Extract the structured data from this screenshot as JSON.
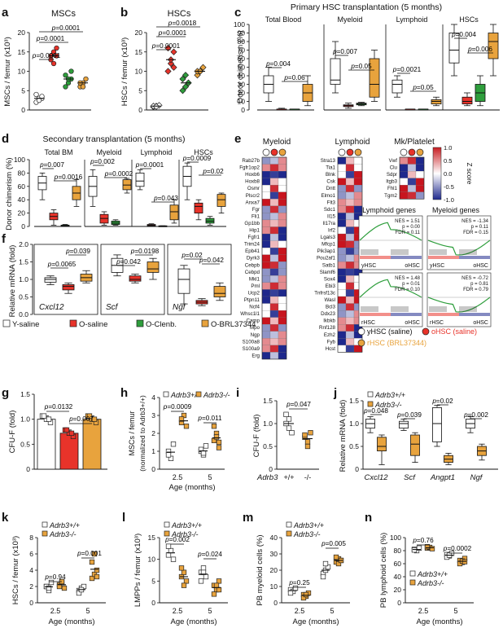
{
  "chart_data": [
    {
      "panel": "a",
      "type": "scatter",
      "title": "MSCs",
      "ylabel": "MSCs / femur (x10³)",
      "ylim": [
        0,
        20
      ],
      "yticks": [
        0,
        5,
        10,
        15,
        20
      ],
      "groups": [
        {
          "name": "Y-saline",
          "color": "#ffffff",
          "mean": 3,
          "values": [
            2,
            3,
            3,
            4,
            2.5,
            3.5
          ]
        },
        {
          "name": "O-saline",
          "color": "#e8332a",
          "mean": 14,
          "values": [
            13,
            15,
            16,
            14,
            12,
            14
          ]
        },
        {
          "name": "O-Clenb.",
          "color": "#2e9e3c",
          "mean": 8,
          "values": [
            6,
            7,
            8,
            9,
            8,
            10
          ]
        },
        {
          "name": "O-BRL37344",
          "color": "#e8a33d",
          "mean": 7,
          "values": [
            6,
            7,
            8,
            7,
            6
          ]
        }
      ],
      "pvalues": [
        {
          "label": "p=0.0001",
          "from": 0,
          "to": 1
        },
        {
          "label": "p=0.0001",
          "from": 0,
          "to": 2
        },
        {
          "label": "p=0.0001",
          "from": 0,
          "to": 3
        }
      ]
    },
    {
      "panel": "b",
      "type": "scatter",
      "title": "HSCs",
      "ylabel": "HSCs / femur (x10³)",
      "ylim": [
        0,
        20
      ],
      "yticks": [
        0,
        5,
        10,
        15,
        20
      ],
      "groups": [
        {
          "name": "Y-saline",
          "mean": 1,
          "values": [
            0.8,
            1,
            1.2,
            1,
            0.9
          ]
        },
        {
          "name": "O-saline",
          "mean": 13,
          "values": [
            10,
            12,
            15,
            16,
            13,
            11
          ]
        },
        {
          "name": "O-Clenb.",
          "mean": 7,
          "values": [
            5,
            6,
            7,
            8,
            9,
            7
          ]
        },
        {
          "name": "O-BRL37344",
          "mean": 10,
          "values": [
            9,
            10,
            11,
            10,
            10
          ]
        }
      ],
      "pvalues": [
        {
          "label": "p=0.0001",
          "from": 0,
          "to": 1
        },
        {
          "label": "p=0.0001",
          "from": 0,
          "to": 2
        },
        {
          "label": "p=0.0018",
          "from": 0,
          "to": 3
        }
      ]
    },
    {
      "panel": "c",
      "type": "box",
      "title": "Primary HSC transplantation (5 months)",
      "ylabel": "Donor chimerism (%)",
      "ylim": [
        0,
        100
      ],
      "yticks": [
        0,
        10,
        20,
        30,
        40,
        50,
        60,
        70,
        80,
        90,
        100
      ],
      "subplots": [
        {
          "title": "Total Blood",
          "boxes": [
            {
              "min": 10,
              "q1": 20,
              "med": 30,
              "q3": 40,
              "max": 50
            },
            {
              "min": 1,
              "q1": 1,
              "med": 1,
              "q3": 1,
              "max": 2
            },
            {
              "min": 1,
              "q1": 1,
              "med": 1,
              "q3": 1,
              "max": 1
            },
            {
              "min": 5,
              "q1": 10,
              "med": 20,
              "q3": 30,
              "max": 40
            }
          ],
          "pvalues": [
            "p=0.004",
            "p=0.06"
          ]
        },
        {
          "title": "Myeloid",
          "boxes": [
            {
              "min": 20,
              "q1": 30,
              "med": 35,
              "q3": 60,
              "max": 80
            },
            {
              "min": 2,
              "q1": 4,
              "med": 5,
              "q3": 6,
              "max": 8
            },
            {
              "min": 5,
              "q1": 6,
              "med": 7,
              "q3": 8,
              "max": 9
            },
            {
              "min": 10,
              "q1": 15,
              "med": 30,
              "q3": 60,
              "max": 70
            }
          ],
          "pvalues": [
            "p=0.007",
            "p=0.05"
          ]
        },
        {
          "title": "Lymphoid",
          "boxes": [
            {
              "min": 15,
              "q1": 20,
              "med": 30,
              "q3": 35,
              "max": 40
            },
            {
              "min": 1,
              "q1": 1,
              "med": 1,
              "q3": 1,
              "max": 1
            },
            {
              "min": 1,
              "q1": 1,
              "med": 1,
              "q3": 1,
              "max": 1
            },
            {
              "min": 5,
              "q1": 7,
              "med": 10,
              "q3": 12,
              "max": 15
            }
          ],
          "pvalues": [
            "p=0.0021",
            "p=0.05"
          ]
        },
        {
          "title": "HSCs",
          "boxes": [
            {
              "min": 40,
              "q1": 55,
              "med": 70,
              "q3": 90,
              "max": 100
            },
            {
              "min": 5,
              "q1": 7,
              "med": 10,
              "q3": 15,
              "max": 20
            },
            {
              "min": 5,
              "q1": 10,
              "med": 20,
              "q3": 30,
              "max": 40
            },
            {
              "min": 40,
              "q1": 60,
              "med": 80,
              "q3": 90,
              "max": 100
            }
          ],
          "pvalues": [
            "p=0.004",
            "p=0.006"
          ]
        }
      ]
    },
    {
      "panel": "d",
      "type": "box",
      "title": "Secondary transplantation (5 months)",
      "ylabel": "Donor chimerism (%)",
      "ylim": [
        0,
        100
      ],
      "yticks": [
        0,
        20,
        40,
        60,
        80,
        100
      ],
      "subplots": [
        {
          "title": "Total BM",
          "pvalues": [
            "p=0.007",
            "p=0.0016"
          ]
        },
        {
          "title": "Myeloid",
          "pvalues": [
            "p=0.002",
            "p=0.0002"
          ]
        },
        {
          "title": "Lymphoid",
          "pvalues": [
            "p=0.0001",
            "p=0.043"
          ]
        },
        {
          "title": "HSCs",
          "pvalues": [
            "p=0.0009",
            "p=0.02"
          ]
        }
      ]
    },
    {
      "panel": "e",
      "type": "heatmap",
      "titles": [
        "Myeloid",
        "Lymphoid",
        "Mk/Platelet"
      ],
      "legend_title": "Z score",
      "scale": [
        1.0,
        0.5,
        0,
        -0.5,
        -1.0
      ],
      "myeloid_genes": [
        "Rab27b",
        "Fgfr1op2",
        "Hoxb6",
        "Hoxb8",
        "Osmr",
        "Plscr2",
        "Anxa7",
        "Fgr",
        "Fli1",
        "Gp1bb",
        "Hip1",
        "Fgfr1",
        "Trim24",
        "Epb41",
        "Dyrk3",
        "Cebpb",
        "Cebpd",
        "Mkl1",
        "Pml",
        "Ucp2",
        "Ptpn11",
        "Ncf4",
        "Whsc1l1",
        "Camp",
        "Mpo",
        "Ngp",
        "S100a8",
        "S100a9",
        "Erg"
      ],
      "lymphoid_genes": [
        "Stra13",
        "Tia1",
        "Blnk",
        "Csk",
        "Dntt",
        "Elmo1",
        "Flt3",
        "Sdc1",
        "Il15",
        "Il17ra",
        "Irf2",
        "Lgals3",
        "Mfcp1",
        "Pik3ap1",
        "Pou2af1",
        "Satb1",
        "Slamf6",
        "Sox4",
        "Ebi3",
        "Tnfrsf13c",
        "Wasl",
        "Bcl3",
        "Ddx23",
        "Ikbkb",
        "Rnf128",
        "Ezh2",
        "Fyb",
        "Hcst"
      ],
      "mk_genes": [
        "Vwf",
        "Clu",
        "Sdpr",
        "Itgb3",
        "Fhl1",
        "Tgm2"
      ],
      "gsea": {
        "titles": [
          "Lymphoid genes",
          "Myeloid genes"
        ],
        "plots": [
          {
            "stats": [
              "NES = 1.51",
              "p = 0.00",
              "FDR = 0.11"
            ],
            "left": "yHSC",
            "right": "oHSC"
          },
          {
            "stats": [
              "NES = -1.34",
              "p = 0.11",
              "FDR = 0.15"
            ],
            "left": "yHSC",
            "right": "oHSC"
          },
          {
            "stats": [
              "NES = 1.48",
              "p = 0.01",
              "FDR = 0.10"
            ],
            "left": "rHSC",
            "right": "oHSC"
          },
          {
            "stats": [
              "NES = -0.72",
              "p = 0.81",
              "FDR = 0.79"
            ],
            "left": "rHSC",
            "right": "oHSC"
          }
        ]
      },
      "legend": [
        {
          "label": "yHSC (saline)",
          "color": "#ffffff"
        },
        {
          "label": "oHSC (saline)",
          "color": "#e8332a"
        },
        {
          "label": "rHSC (BRL37344)",
          "color": "#e8a33d"
        }
      ]
    },
    {
      "panel": "f",
      "type": "box",
      "ylabel": "Relative mRNA (fold)",
      "ylim": [
        0,
        2.0
      ],
      "yticks": [
        0.0,
        0.5,
        1.0,
        1.5,
        2.0
      ],
      "subplots": [
        {
          "gene": "Cxcl12",
          "pvalues": [
            "p=0.0065",
            "p=0.039"
          ],
          "boxes": [
            {
              "min": 0.85,
              "q1": 0.92,
              "med": 1.0,
              "q3": 1.05,
              "max": 1.1
            },
            {
              "min": 0.6,
              "q1": 0.7,
              "med": 0.8,
              "q3": 0.85,
              "max": 0.9
            },
            {
              "min": 0.9,
              "q1": 0.95,
              "med": 1.05,
              "q3": 1.15,
              "max": 1.25
            }
          ]
        },
        {
          "gene": "Scf",
          "pvalues": [
            "p=0.042",
            "p=0.0198"
          ],
          "boxes": [
            {
              "min": 1.1,
              "q1": 1.2,
              "med": 1.4,
              "q3": 1.6,
              "max": 1.7
            },
            {
              "min": 0.9,
              "q1": 0.95,
              "med": 1.0,
              "q3": 1.1,
              "max": 1.15
            },
            {
              "min": 1.0,
              "q1": 1.2,
              "med": 1.3,
              "q3": 1.5,
              "max": 1.6
            }
          ]
        },
        {
          "gene": "Ngf",
          "pvalues": [
            "p=0.02",
            "p=0.042"
          ],
          "boxes": [
            {
              "min": 0.3,
              "q1": 0.6,
              "med": 1.0,
              "q3": 1.3,
              "max": 1.4
            },
            {
              "min": 0.25,
              "q1": 0.3,
              "med": 0.35,
              "q3": 0.4,
              "max": 0.45
            },
            {
              "min": 0.4,
              "q1": 0.5,
              "med": 0.6,
              "q3": 0.8,
              "max": 0.9
            }
          ]
        }
      ]
    },
    {
      "panel": "legend",
      "items": [
        {
          "label": "Y-saline",
          "color": "#ffffff"
        },
        {
          "label": "O-saline",
          "color": "#e8332a"
        },
        {
          "label": "O-Clenb.",
          "color": "#2e9e3c"
        },
        {
          "label": "O-BRL37344",
          "color": "#e8a33d"
        }
      ]
    },
    {
      "panel": "g",
      "type": "bar",
      "ylabel": "CFU-F (fold)",
      "ylim": [
        0,
        1.5
      ],
      "yticks": [
        0,
        0.5,
        1.0,
        1.5
      ],
      "values": [
        1.0,
        0.72,
        1.0
      ],
      "colors": [
        "#ffffff",
        "#e8332a",
        "#e8a33d"
      ],
      "pvalues": [
        "p=0.0132",
        "p=0.007"
      ]
    },
    {
      "panel": "h",
      "type": "scatter",
      "ylabel": "MSCs / femur (normalized to Adrb3+/+)",
      "xlabel": "Age (months)",
      "categories": [
        "2.5",
        "5"
      ],
      "ylim": [
        0,
        4
      ],
      "yticks": [
        0,
        1,
        2,
        3,
        4
      ],
      "legend": [
        "Adrb3+/+",
        "Adrb3-/-"
      ],
      "pvalues": [
        "p=0.0009",
        "p=0.011"
      ],
      "series": [
        {
          "name": "Adrb3+/+",
          "values": [
            [
              1.0,
              0.6,
              1.4,
              0.8
            ],
            [
              1.0,
              0.8,
              1.3,
              1.1,
              0.9
            ]
          ]
        },
        {
          "name": "Adrb3-/-",
          "values": [
            [
              2.6,
              3.0,
              2.4,
              2.8
            ],
            [
              1.6,
              2.0,
              1.2,
              2.4,
              1.8,
              1.5
            ]
          ]
        }
      ]
    },
    {
      "panel": "i",
      "type": "scatter",
      "ylabel": "CFU-F (fold)",
      "xlabel": "Adrb3",
      "categories": [
        "+/+",
        "-/-"
      ],
      "ylim": [
        0,
        1.5
      ],
      "yticks": [
        0,
        0.5,
        1.0,
        1.5
      ],
      "pvalues": [
        "p=0.047"
      ],
      "series": [
        {
          "values": [
            1.0,
            1.1,
            0.8,
            1.2,
            0.9
          ]
        },
        {
          "values": [
            0.7,
            0.6,
            0.8,
            0.75,
            0.5
          ]
        }
      ]
    },
    {
      "panel": "j",
      "type": "box",
      "ylabel": "Relative mRNA (fold)",
      "ylim": [
        0,
        1.5
      ],
      "yticks": [
        0,
        0.5,
        1.0,
        1.5
      ],
      "legend": [
        "Adrb3+/+",
        "Adrb3-/-"
      ],
      "categories": [
        "Cxcl12",
        "Scf",
        "Angpt1",
        "Ngf"
      ],
      "pvalues": [
        "p=0.048",
        "p=0.039",
        "p=0.02",
        "p=0.002"
      ]
    },
    {
      "panel": "k",
      "type": "scatter",
      "ylabel": "HSCs / femur (x10³)",
      "xlabel": "Age (months)",
      "categories": [
        "2.5",
        "5"
      ],
      "ylim": [
        0,
        8
      ],
      "yticks": [
        0,
        2,
        4,
        6,
        8
      ],
      "legend": [
        "Adrb3+/+",
        "Adrb3-/-"
      ],
      "pvalues": [
        "p=0.94",
        "p=0.001"
      ]
    },
    {
      "panel": "l",
      "type": "scatter",
      "ylabel": "LMPPs / femur (x10³)",
      "xlabel": "Age (months)",
      "categories": [
        "2.5",
        "5"
      ],
      "ylim": [
        0,
        15
      ],
      "yticks": [
        0,
        5,
        10,
        15
      ],
      "legend": [
        "Adrb3+/+",
        "Adrb3-/-"
      ],
      "pvalues": [
        "p=0.002",
        "p=0.024"
      ]
    },
    {
      "panel": "m",
      "type": "scatter",
      "ylabel": "PB myeloid cells (%)",
      "xlabel": "Age (months)",
      "categories": [
        "2.5",
        "5"
      ],
      "ylim": [
        0,
        40
      ],
      "yticks": [
        0,
        10,
        20,
        30,
        40
      ],
      "legend": [
        "Adrb3+/+",
        "Adrb3-/-"
      ],
      "pvalues": [
        "p=0.25",
        "p=0.005"
      ]
    },
    {
      "panel": "n",
      "type": "scatter",
      "ylabel": "PB lymphoid cells (%)",
      "xlabel": "Age (months)",
      "categories": [
        "2.5",
        "5"
      ],
      "ylim": [
        0,
        100
      ],
      "yticks": [
        0,
        20,
        40,
        60,
        80,
        100
      ],
      "legend": [
        "Adrb3+/+",
        "Adrb3-/-"
      ],
      "pvalues": [
        "p=0.76",
        "p=0.0002"
      ]
    }
  ],
  "labels": {
    "a": "a",
    "b": "b",
    "c": "c",
    "d": "d",
    "e": "e",
    "f": "f",
    "g": "g",
    "h": "h",
    "i": "i",
    "j": "j",
    "k": "k",
    "l": "l",
    "m": "m",
    "n": "n"
  }
}
